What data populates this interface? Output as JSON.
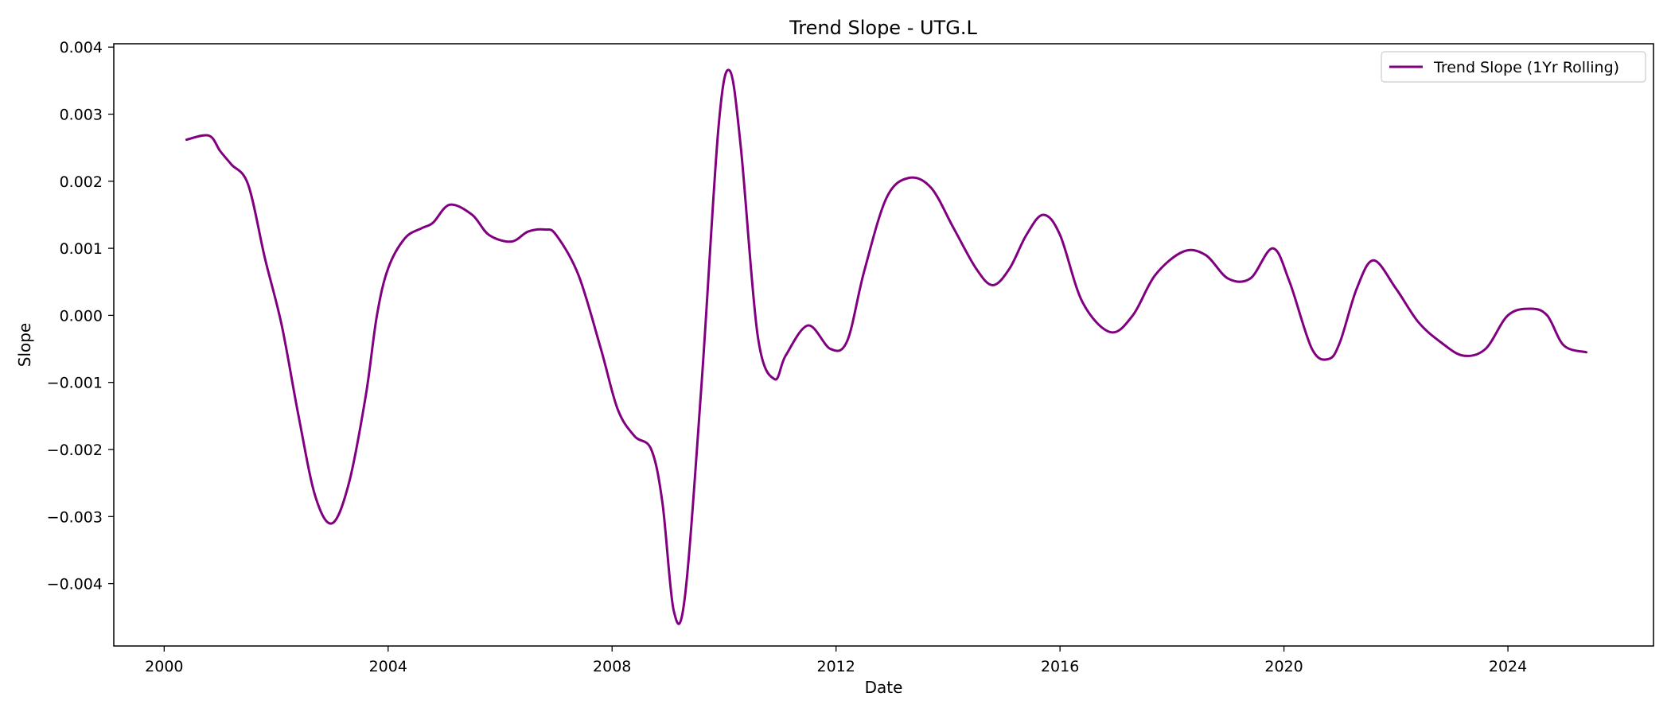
{
  "chart_data": {
    "type": "line",
    "title": "Trend Slope - UTG.L",
    "xlabel": "Date",
    "ylabel": "Slope",
    "xlim": [
      1999.1,
      2026.6
    ],
    "ylim": [
      -0.00493,
      0.00405
    ],
    "x_ticks": [
      2000,
      2004,
      2008,
      2012,
      2016,
      2020,
      2024
    ],
    "x_tick_labels": [
      "2000",
      "2004",
      "2008",
      "2012",
      "2016",
      "2020",
      "2024"
    ],
    "y_ticks": [
      0.004,
      0.003,
      0.002,
      0.001,
      0.0,
      -0.001,
      -0.002,
      -0.003,
      -0.004
    ],
    "y_tick_labels": [
      "0.004",
      "0.003",
      "0.002",
      "0.001",
      "0.000",
      "−0.001",
      "−0.002",
      "−0.003",
      "−0.004"
    ],
    "grid": false,
    "legend_position": "top-right",
    "series": [
      {
        "name": "Trend Slope (1Yr Rolling)",
        "color": "#800080",
        "x": [
          2000.4,
          2000.8,
          2001.0,
          2001.2,
          2001.5,
          2001.8,
          2002.1,
          2002.4,
          2002.7,
          2003.0,
          2003.3,
          2003.6,
          2003.8,
          2004.0,
          2004.3,
          2004.6,
          2004.8,
          2005.1,
          2005.5,
          2005.8,
          2006.2,
          2006.5,
          2006.8,
          2007.0,
          2007.4,
          2007.8,
          2008.1,
          2008.4,
          2008.7,
          2008.9,
          2009.1,
          2009.3,
          2009.6,
          2009.9,
          2010.1,
          2010.3,
          2010.6,
          2010.9,
          2011.1,
          2011.5,
          2011.9,
          2012.2,
          2012.5,
          2012.9,
          2013.3,
          2013.7,
          2014.1,
          2014.5,
          2014.8,
          2015.1,
          2015.4,
          2015.7,
          2016.0,
          2016.4,
          2016.9,
          2017.3,
          2017.7,
          2018.2,
          2018.6,
          2019.0,
          2019.4,
          2019.8,
          2020.1,
          2020.5,
          2020.8,
          2021.0,
          2021.3,
          2021.6,
          2022.0,
          2022.4,
          2022.8,
          2023.2,
          2023.6,
          2024.0,
          2024.4,
          2024.7,
          2025.0,
          2025.4
        ],
        "values": [
          0.00262,
          0.00268,
          0.00245,
          0.00225,
          0.00195,
          0.00085,
          -0.00015,
          -0.0015,
          -0.0027,
          -0.0031,
          -0.0025,
          -0.0012,
          0.0,
          0.0007,
          0.00115,
          0.0013,
          0.00138,
          0.00165,
          0.0015,
          0.0012,
          0.0011,
          0.00125,
          0.00128,
          0.0012,
          0.0006,
          -0.0005,
          -0.0014,
          -0.0018,
          -0.002,
          -0.0028,
          -0.0044,
          -0.0042,
          -0.001,
          0.0028,
          0.00365,
          0.0025,
          -0.0003,
          -0.00095,
          -0.0006,
          -0.00015,
          -0.0005,
          -0.00038,
          0.00065,
          0.00175,
          0.00205,
          0.0019,
          0.0013,
          0.0007,
          0.00045,
          0.0007,
          0.0012,
          0.0015,
          0.0012,
          0.0002,
          -0.00025,
          0.0,
          0.0006,
          0.00095,
          0.0009,
          0.00055,
          0.00055,
          0.001,
          0.0005,
          -0.0005,
          -0.00065,
          -0.0004,
          0.0004,
          0.00082,
          0.0004,
          -0.0001,
          -0.0004,
          -0.0006,
          -0.0005,
          0.0,
          0.0001,
          0.0,
          -0.00045,
          -0.00055
        ]
      }
    ]
  }
}
